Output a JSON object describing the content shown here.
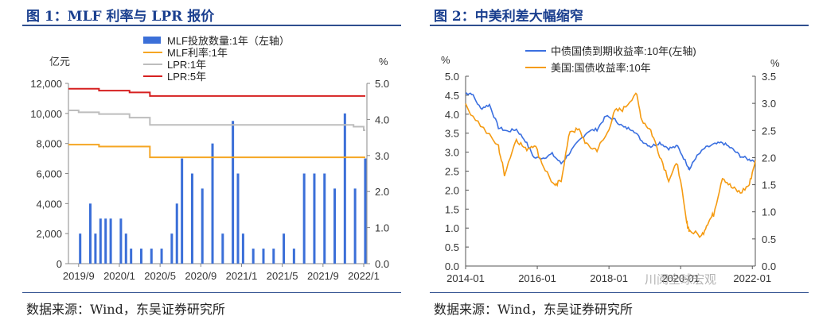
{
  "panel1": {
    "title": "图 1：MLF 利率与 LPR 报价",
    "source": "数据来源：Wind，东吴证券研究所"
  },
  "panel2": {
    "title": "图 2：中美利差大幅缩窄",
    "source": "数据来源：Wind，东吴证券研究所"
  },
  "watermark": "川阅全球宏观",
  "colors": {
    "title": "#1a3f8f",
    "mlf_bar": "#3b6fd8",
    "mlf_rate": "#f5a623",
    "lpr1": "#bdbdbd",
    "lpr5": "#d62020",
    "cn10y": "#3a6fe0",
    "us10y": "#f59b12"
  },
  "chart_data": [
    {
      "type": "bar",
      "ylabel_left": "亿元",
      "ylabel_right": "%",
      "ylim_left": [
        0,
        12000
      ],
      "ylim_right": [
        0,
        5.0
      ],
      "yticks_left": [
        "0",
        "2,000",
        "4,000",
        "6,000",
        "8,000",
        "10,000",
        "12,000"
      ],
      "yticks_right": [
        "0.0",
        "1.0",
        "2.0",
        "3.0",
        "4.0",
        "5.0"
      ],
      "xticks": [
        "2019/9",
        "2020/1",
        "2020/5",
        "2020/9",
        "2021/1",
        "2021/5",
        "2021/9",
        "2022/1"
      ],
      "x_range": [
        "2019-08",
        "2022-01"
      ],
      "legend": [
        "MLF投放数量:1年（左轴）",
        "MLF利率:1年",
        "LPR:1年",
        "LPR:5年"
      ],
      "bars": {
        "name": "MLF投放数量:1年（左轴）",
        "x": [
          "2019-09",
          "2019-10",
          "2019-10",
          "2019-11",
          "2019-11",
          "2019-12",
          "2020-01",
          "2020-01",
          "2020-02",
          "2020-03",
          "2020-04",
          "2020-05",
          "2020-06",
          "2020-06",
          "2020-07",
          "2020-08",
          "2020-09",
          "2020-10",
          "2020-11",
          "2020-12",
          "2020-12",
          "2021-01",
          "2021-02",
          "2021-03",
          "2021-04",
          "2021-05",
          "2021-06",
          "2021-07",
          "2021-08",
          "2021-09",
          "2021-10",
          "2021-11",
          "2021-12",
          "2022-01"
        ],
        "values": [
          2000,
          4000,
          2000,
          3000,
          3000,
          3000,
          3000,
          2000,
          1000,
          1000,
          1000,
          1000,
          2000,
          4000,
          7000,
          6000,
          5000,
          8000,
          2000,
          9500,
          6000,
          2000,
          1000,
          1000,
          1000,
          2000,
          1000,
          6000,
          6000,
          6000,
          5000,
          10000,
          5000,
          7000
        ]
      },
      "series": [
        {
          "name": "MLF利率:1年",
          "axis": "right",
          "x": [
            "2019-08",
            "2019-11",
            "2020-04",
            "2022-01"
          ],
          "values": [
            3.3,
            3.25,
            2.95,
            2.95
          ]
        },
        {
          "name": "LPR:1年",
          "axis": "right",
          "x": [
            "2019-08",
            "2019-09",
            "2019-11",
            "2020-02",
            "2020-04",
            "2021-12",
            "2022-01"
          ],
          "values": [
            4.25,
            4.2,
            4.15,
            4.05,
            3.85,
            3.8,
            3.7
          ]
        },
        {
          "name": "LPR:5年",
          "axis": "right",
          "x": [
            "2019-08",
            "2019-11",
            "2020-02",
            "2020-04",
            "2022-01"
          ],
          "values": [
            4.85,
            4.8,
            4.75,
            4.65,
            4.65
          ]
        }
      ]
    },
    {
      "type": "line",
      "ylabel_left": "%",
      "ylabel_right": "%",
      "ylim_left": [
        0,
        5.0
      ],
      "ylim_right": [
        0,
        3.5
      ],
      "yticks_left": [
        "0.0",
        "0.5",
        "1.0",
        "1.5",
        "2.0",
        "2.5",
        "3.0",
        "3.5",
        "4.0",
        "4.5",
        "5.0"
      ],
      "yticks_right": [
        "0.0",
        "0.5",
        "1.0",
        "1.5",
        "2.0",
        "2.5",
        "3.0",
        "3.5"
      ],
      "xticks": [
        "2014-01",
        "2016-01",
        "2018-01",
        "2020-01",
        "2022-01"
      ],
      "x_range": [
        "2014-01",
        "2022-02"
      ],
      "series": [
        {
          "name": "中债国债到期收益率:10年(左轴)",
          "axis": "left",
          "x": [
            "2014-01",
            "2014-03",
            "2014-06",
            "2014-09",
            "2014-12",
            "2015-03",
            "2015-06",
            "2015-09",
            "2015-12",
            "2016-03",
            "2016-06",
            "2016-09",
            "2016-12",
            "2017-03",
            "2017-06",
            "2017-09",
            "2017-12",
            "2018-03",
            "2018-06",
            "2018-09",
            "2018-12",
            "2019-03",
            "2019-06",
            "2019-09",
            "2019-12",
            "2020-03",
            "2020-04",
            "2020-06",
            "2020-09",
            "2020-12",
            "2021-03",
            "2021-06",
            "2021-09",
            "2021-12",
            "2022-02"
          ],
          "values": [
            4.55,
            4.55,
            4.15,
            4.25,
            3.65,
            3.55,
            3.6,
            3.3,
            2.85,
            2.85,
            2.95,
            2.7,
            3.0,
            3.3,
            3.55,
            3.6,
            3.95,
            3.85,
            3.65,
            3.6,
            3.3,
            3.15,
            3.25,
            3.1,
            3.15,
            2.7,
            2.55,
            2.85,
            3.1,
            3.2,
            3.25,
            3.1,
            2.9,
            2.8,
            2.78
          ]
        },
        {
          "name": "美国:国债收益率:10年",
          "axis": "right",
          "x": [
            "2014-01",
            "2014-06",
            "2014-12",
            "2015-02",
            "2015-06",
            "2015-09",
            "2015-12",
            "2016-03",
            "2016-07",
            "2016-09",
            "2016-12",
            "2017-03",
            "2017-06",
            "2017-09",
            "2017-12",
            "2018-03",
            "2018-06",
            "2018-10",
            "2018-12",
            "2019-03",
            "2019-06",
            "2019-09",
            "2019-12",
            "2020-03",
            "2020-04",
            "2020-08",
            "2020-10",
            "2020-12",
            "2021-03",
            "2021-06",
            "2021-09",
            "2021-12",
            "2022-02"
          ],
          "values": [
            2.95,
            2.6,
            2.2,
            1.7,
            2.35,
            2.15,
            2.25,
            1.85,
            1.45,
            1.6,
            2.5,
            2.5,
            2.2,
            2.15,
            2.4,
            2.85,
            2.9,
            3.2,
            2.7,
            2.5,
            2.05,
            1.6,
            1.9,
            0.8,
            0.65,
            0.55,
            0.8,
            0.95,
            1.65,
            1.45,
            1.35,
            1.5,
            1.95
          ]
        }
      ]
    }
  ]
}
